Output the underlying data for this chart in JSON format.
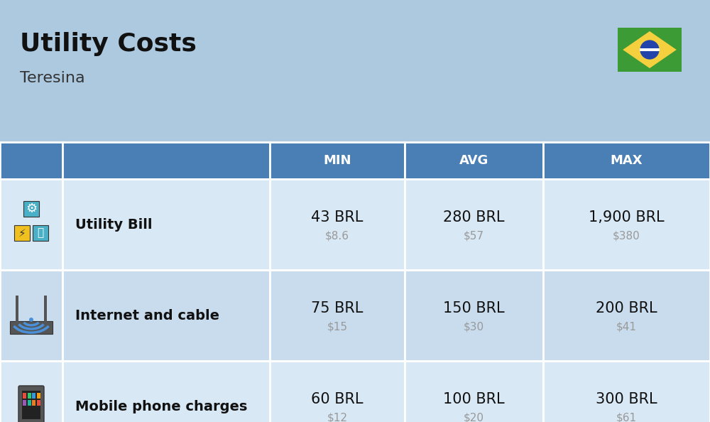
{
  "title": "Utility Costs",
  "subtitle": "Teresina",
  "background_color": "#adc9e0",
  "header_bg_color": "#4a7fb5",
  "header_text_color": "#ffffff",
  "row_bg_color_1": "#d9e8f5",
  "row_bg_color_2": "#c8dcee",
  "table_border_color": "#ffffff",
  "columns": [
    "",
    "",
    "MIN",
    "AVG",
    "MAX"
  ],
  "rows": [
    {
      "label": "Utility Bill",
      "min_brl": "43 BRL",
      "min_usd": "$8.6",
      "avg_brl": "280 BRL",
      "avg_usd": "$57",
      "max_brl": "1,900 BRL",
      "max_usd": "$380"
    },
    {
      "label": "Internet and cable",
      "min_brl": "75 BRL",
      "min_usd": "$15",
      "avg_brl": "150 BRL",
      "avg_usd": "$30",
      "max_brl": "200 BRL",
      "max_usd": "$41"
    },
    {
      "label": "Mobile phone charges",
      "min_brl": "60 BRL",
      "min_usd": "$12",
      "avg_brl": "100 BRL",
      "avg_usd": "$20",
      "max_brl": "300 BRL",
      "max_usd": "$61"
    }
  ],
  "title_fontsize": 26,
  "subtitle_fontsize": 16,
  "header_fontsize": 13,
  "cell_brl_fontsize": 15,
  "cell_usd_fontsize": 11,
  "label_fontsize": 14,
  "usd_color": "#999999",
  "label_color": "#111111",
  "brl_color": "#111111"
}
